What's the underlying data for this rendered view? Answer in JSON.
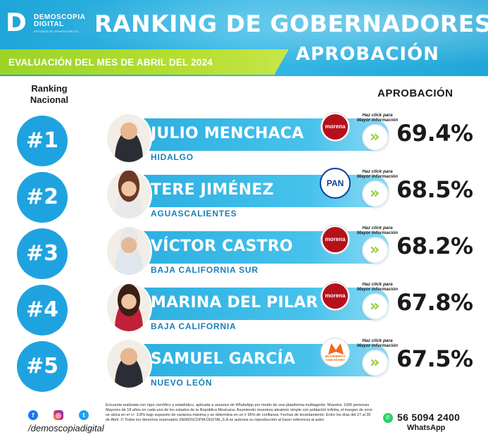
{
  "header": {
    "logo_letter": "D",
    "logo_name": "DEMOSCOPIA\nDIGITAL",
    "logo_sub": "ESTUDIOS DE OPINIÓN PÚBLICA",
    "title": "RANKING DE GOBERNADORES",
    "evaluation": "EVALUACIÓN DEL MES DE ABRIL DEL 2024",
    "subtitle": "APROBACIÓN"
  },
  "labels": {
    "ranking": "Ranking\nNacional",
    "approval": "APROBACIÓN",
    "click_more": "Haz click para\nMayor información"
  },
  "rows": [
    {
      "rank": "#1",
      "name": "JULIO MENCHACA",
      "state": "HIDALGO",
      "party": "morena",
      "approval": "69.4%"
    },
    {
      "rank": "#2",
      "name": "TERE JIMÉNEZ",
      "state": "AGUASCALIENTES",
      "party": "PAN",
      "approval": "68.5%"
    },
    {
      "rank": "#3",
      "name": "VÍCTOR CASTRO",
      "state": "BAJA CALIFORNIA SUR",
      "party": "morena",
      "approval": "68.2%"
    },
    {
      "rank": "#4",
      "name": "MARINA DEL PILAR",
      "state": "BAJA CALIFORNIA",
      "party": "morena",
      "approval": "67.8%"
    },
    {
      "rank": "#5",
      "name": "SAMUEL GARCÍA",
      "state": "NUEVO LEÓN",
      "party": "MOVIMIENTO\nCIUDADANO",
      "approval": "67.5%"
    }
  ],
  "icons": {
    "chevron": "»",
    "facebook": "f",
    "instagram": "◎",
    "twitter": "t",
    "whatsapp": "✆"
  },
  "footer": {
    "handle": "/demoscopiadigital",
    "disclaimer": "Encuesta realizada con rigor científico y estadístico, aplicada a usuarios de WhatsApp por medio de una plataforma multiagente. Muestra: 1000 personas Mayores de 18 años en cada uno de los estados de la República Mexicana. Asumiendo muestreo aleatorio simple con población infinita, el margen de error se ubica en el +/- 3.8% bajo supuesto de varianza máxima y se determina en un ± 95% de confianza. Fechas de levantamiento: Entre los días del 27 al 30 de Abril. © Todos los derechos reservados DEMOSCOPIA DIGITAL,S.A se autoriza su reproducción al hacer referencia al autor.",
    "phone": "56 5094 2400",
    "whatsapp_label": "WhatsApp"
  },
  "colors": {
    "header_blue": "#1fa6d8",
    "green_bar": "#9bd428",
    "morena_red": "#b5111b",
    "pan_blue": "#0b3e9b",
    "mc_orange": "#ef6a1b"
  }
}
